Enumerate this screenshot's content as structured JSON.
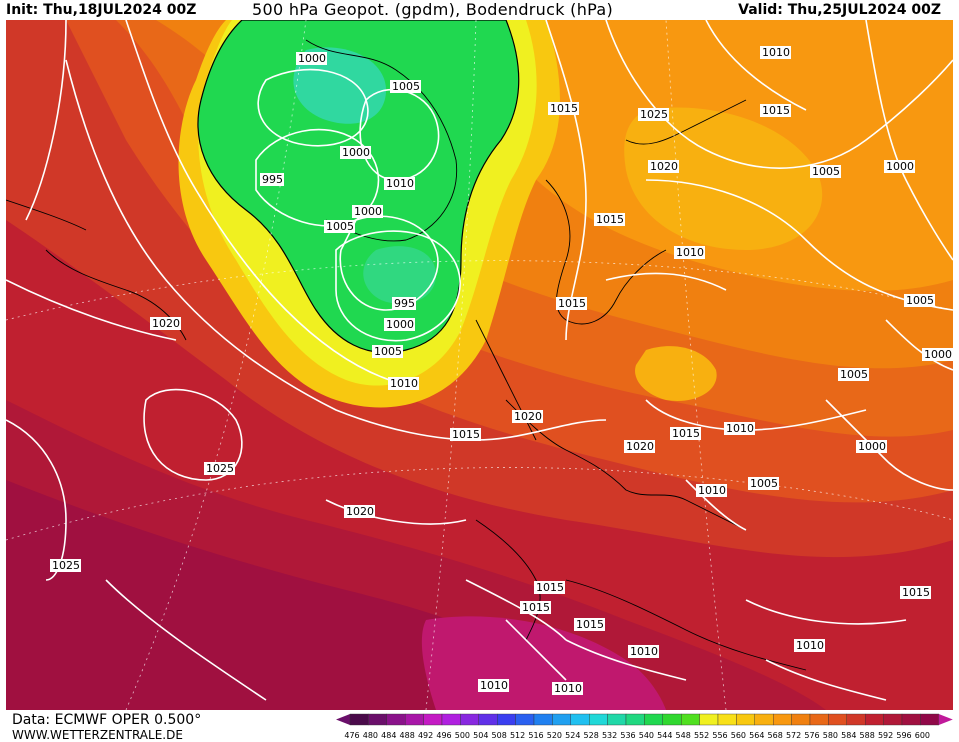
{
  "header": {
    "init": "Init: Thu,18JUL2024 00Z",
    "title": "500 hPa Geopot. (gpdm), Bodendruck (hPa)",
    "valid": "Valid: Thu,25JUL2024 00Z"
  },
  "footer": {
    "data_source": "Data: ECMWF OPER 0.500°",
    "url": "WWW.WETTERZENTRALE.DE"
  },
  "colorbar": {
    "ticks": [
      "476",
      "480",
      "484",
      "488",
      "492",
      "496",
      "500",
      "504",
      "508",
      "512",
      "516",
      "520",
      "524",
      "528",
      "532",
      "536",
      "540",
      "544",
      "548",
      "552",
      "556",
      "560",
      "564",
      "568",
      "572",
      "576",
      "580",
      "584",
      "588",
      "592",
      "596",
      "600"
    ],
    "colors": [
      "#4a0a4a",
      "#6a0f6a",
      "#8a128a",
      "#a816a8",
      "#c41ac4",
      "#b020e0",
      "#8828e0",
      "#6030e8",
      "#3a3ef0",
      "#2a60f0",
      "#2080f0",
      "#20a0f0",
      "#20c0f0",
      "#20d8d8",
      "#20d8a8",
      "#20d880",
      "#20d850",
      "#30d830",
      "#50e020",
      "#f0f020",
      "#f8e018",
      "#f8c810",
      "#f8b010",
      "#f89810",
      "#f08010",
      "#e86818",
      "#e05020",
      "#d03828",
      "#c02030",
      "#b01838",
      "#a01040",
      "#900848"
    ],
    "arrow_left_color": "#6a0f6a",
    "arrow_right_color": "#c01a9a"
  },
  "isobar_labels": [
    {
      "text": "1000"
    },
    {
      "text": "1005"
    },
    {
      "text": "1000"
    },
    {
      "text": "995"
    },
    {
      "text": "1010"
    },
    {
      "text": "1000"
    },
    {
      "text": "1005"
    },
    {
      "text": "995"
    },
    {
      "text": "1000"
    },
    {
      "text": "1005"
    },
    {
      "text": "1010"
    },
    {
      "text": "1015"
    },
    {
      "text": "1015"
    },
    {
      "text": "1025"
    },
    {
      "text": "1020"
    },
    {
      "text": "1010"
    },
    {
      "text": "1015"
    },
    {
      "text": "1005"
    },
    {
      "text": "1000"
    },
    {
      "text": "1015"
    },
    {
      "text": "1010"
    },
    {
      "text": "1015"
    },
    {
      "text": "1020"
    },
    {
      "text": "1025"
    },
    {
      "text": "1020"
    },
    {
      "text": "1025"
    },
    {
      "text": "1020"
    },
    {
      "text": "1020"
    },
    {
      "text": "1015"
    },
    {
      "text": "1010"
    },
    {
      "text": "1010"
    },
    {
      "text": "1005"
    },
    {
      "text": "1005"
    },
    {
      "text": "1000"
    },
    {
      "text": "1000"
    },
    {
      "text": "1005"
    },
    {
      "text": "1015"
    },
    {
      "text": "1015"
    },
    {
      "text": "1015"
    },
    {
      "text": "1010"
    },
    {
      "text": "1010"
    },
    {
      "text": "1010"
    },
    {
      "text": "1010"
    },
    {
      "text": "1015"
    }
  ]
}
